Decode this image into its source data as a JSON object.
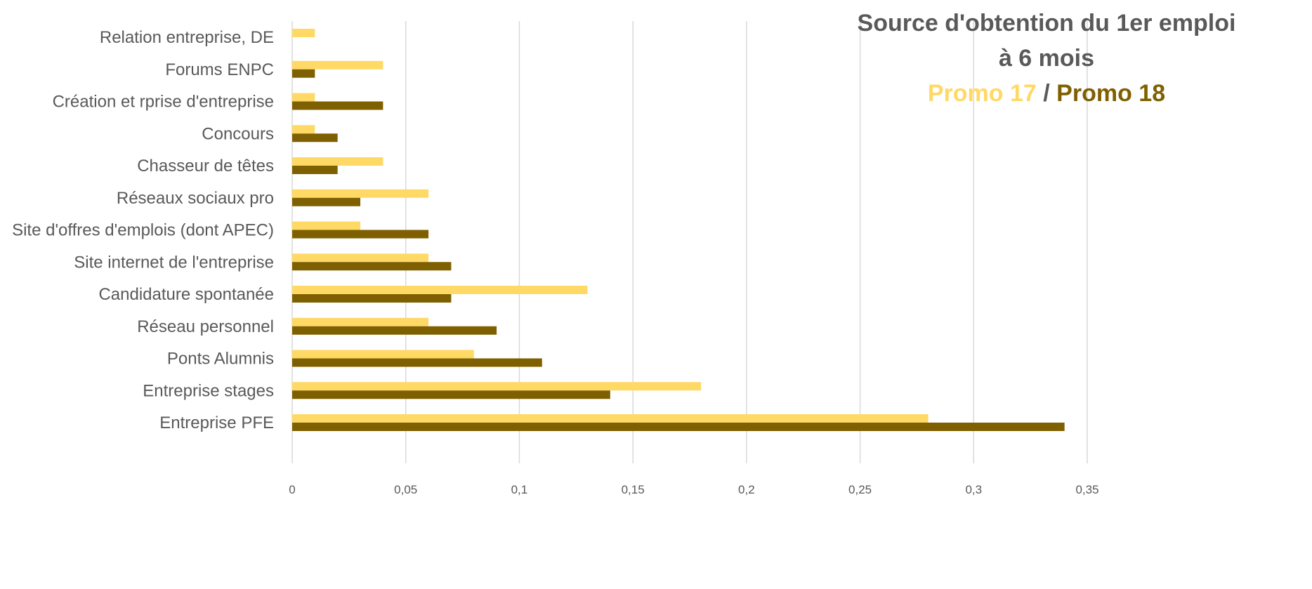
{
  "chart_data": {
    "type": "bar",
    "orientation": "horizontal",
    "title_line1": "Source d'obtention du 1er emploi",
    "title_line2": "à 6 mois",
    "legend_p17": "Promo 17",
    "legend_sep": "/",
    "legend_p18": "Promo 18",
    "categories": [
      "Relation entreprise, DE",
      "Forums ENPC",
      "Création et rprise d'entreprise",
      "Concours",
      "Chasseur de têtes",
      "Réseaux sociaux pro",
      "Site d'offres d'emplois (dont APEC)",
      "Site internet de l'entreprise",
      "Candidature spontanée",
      "Réseau personnel",
      "Ponts Alumnis",
      "Entreprise stages",
      "Entreprise PFE"
    ],
    "series": [
      {
        "name": "Promo 17",
        "color": "#FFD966",
        "values": [
          0.01,
          0.04,
          0.01,
          0.01,
          0.04,
          0.06,
          0.03,
          0.06,
          0.13,
          0.06,
          0.08,
          0.18,
          0.28
        ]
      },
      {
        "name": "Promo 18",
        "color": "#7F6000",
        "values": [
          0,
          0.01,
          0.04,
          0.02,
          0.02,
          0.03,
          0.06,
          0.07,
          0.07,
          0.09,
          0.11,
          0.14,
          0.34
        ]
      }
    ],
    "xlim": [
      0,
      0.35
    ],
    "xticks": [
      "0",
      "0,05",
      "0,1",
      "0,15",
      "0,2",
      "0,25",
      "0,3",
      "0,35"
    ],
    "grid": true,
    "gridline_color": "#D9D9D9",
    "label_color": "#595959"
  }
}
